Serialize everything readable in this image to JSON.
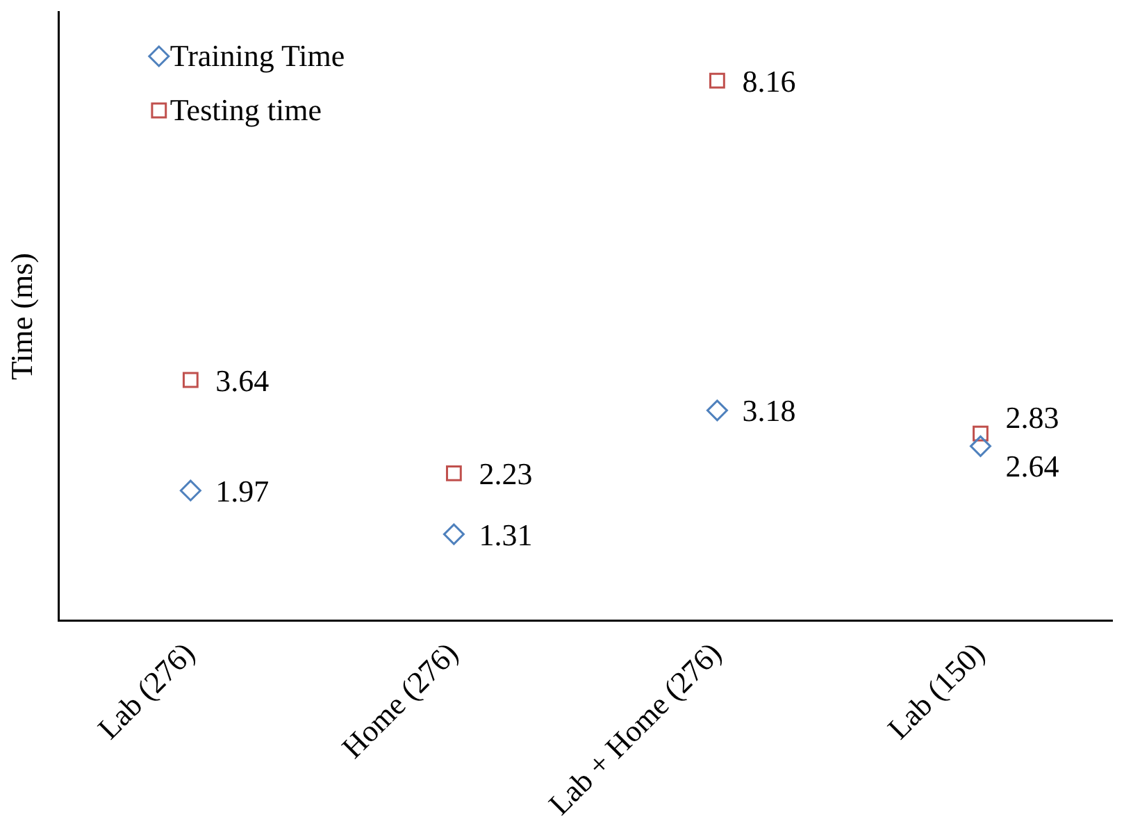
{
  "chart_data": {
    "type": "scatter",
    "ylabel": "Time (ms)",
    "categories": [
      "Lab (276)",
      "Home (276)",
      "Lab + Home (276)",
      "Lab (150)"
    ],
    "series": [
      {
        "name": "Training Time",
        "color": "#4f81bd",
        "marker": "diamond",
        "values": [
          1.97,
          1.31,
          3.18,
          2.64
        ]
      },
      {
        "name": "Testing time",
        "color": "#c0504d",
        "marker": "square",
        "values": [
          3.64,
          2.23,
          8.16,
          2.83
        ]
      }
    ],
    "ylim": [
      0,
      9.2
    ],
    "tick_labels": "x",
    "data_labels": true,
    "legend": "top left",
    "grid": false
  }
}
